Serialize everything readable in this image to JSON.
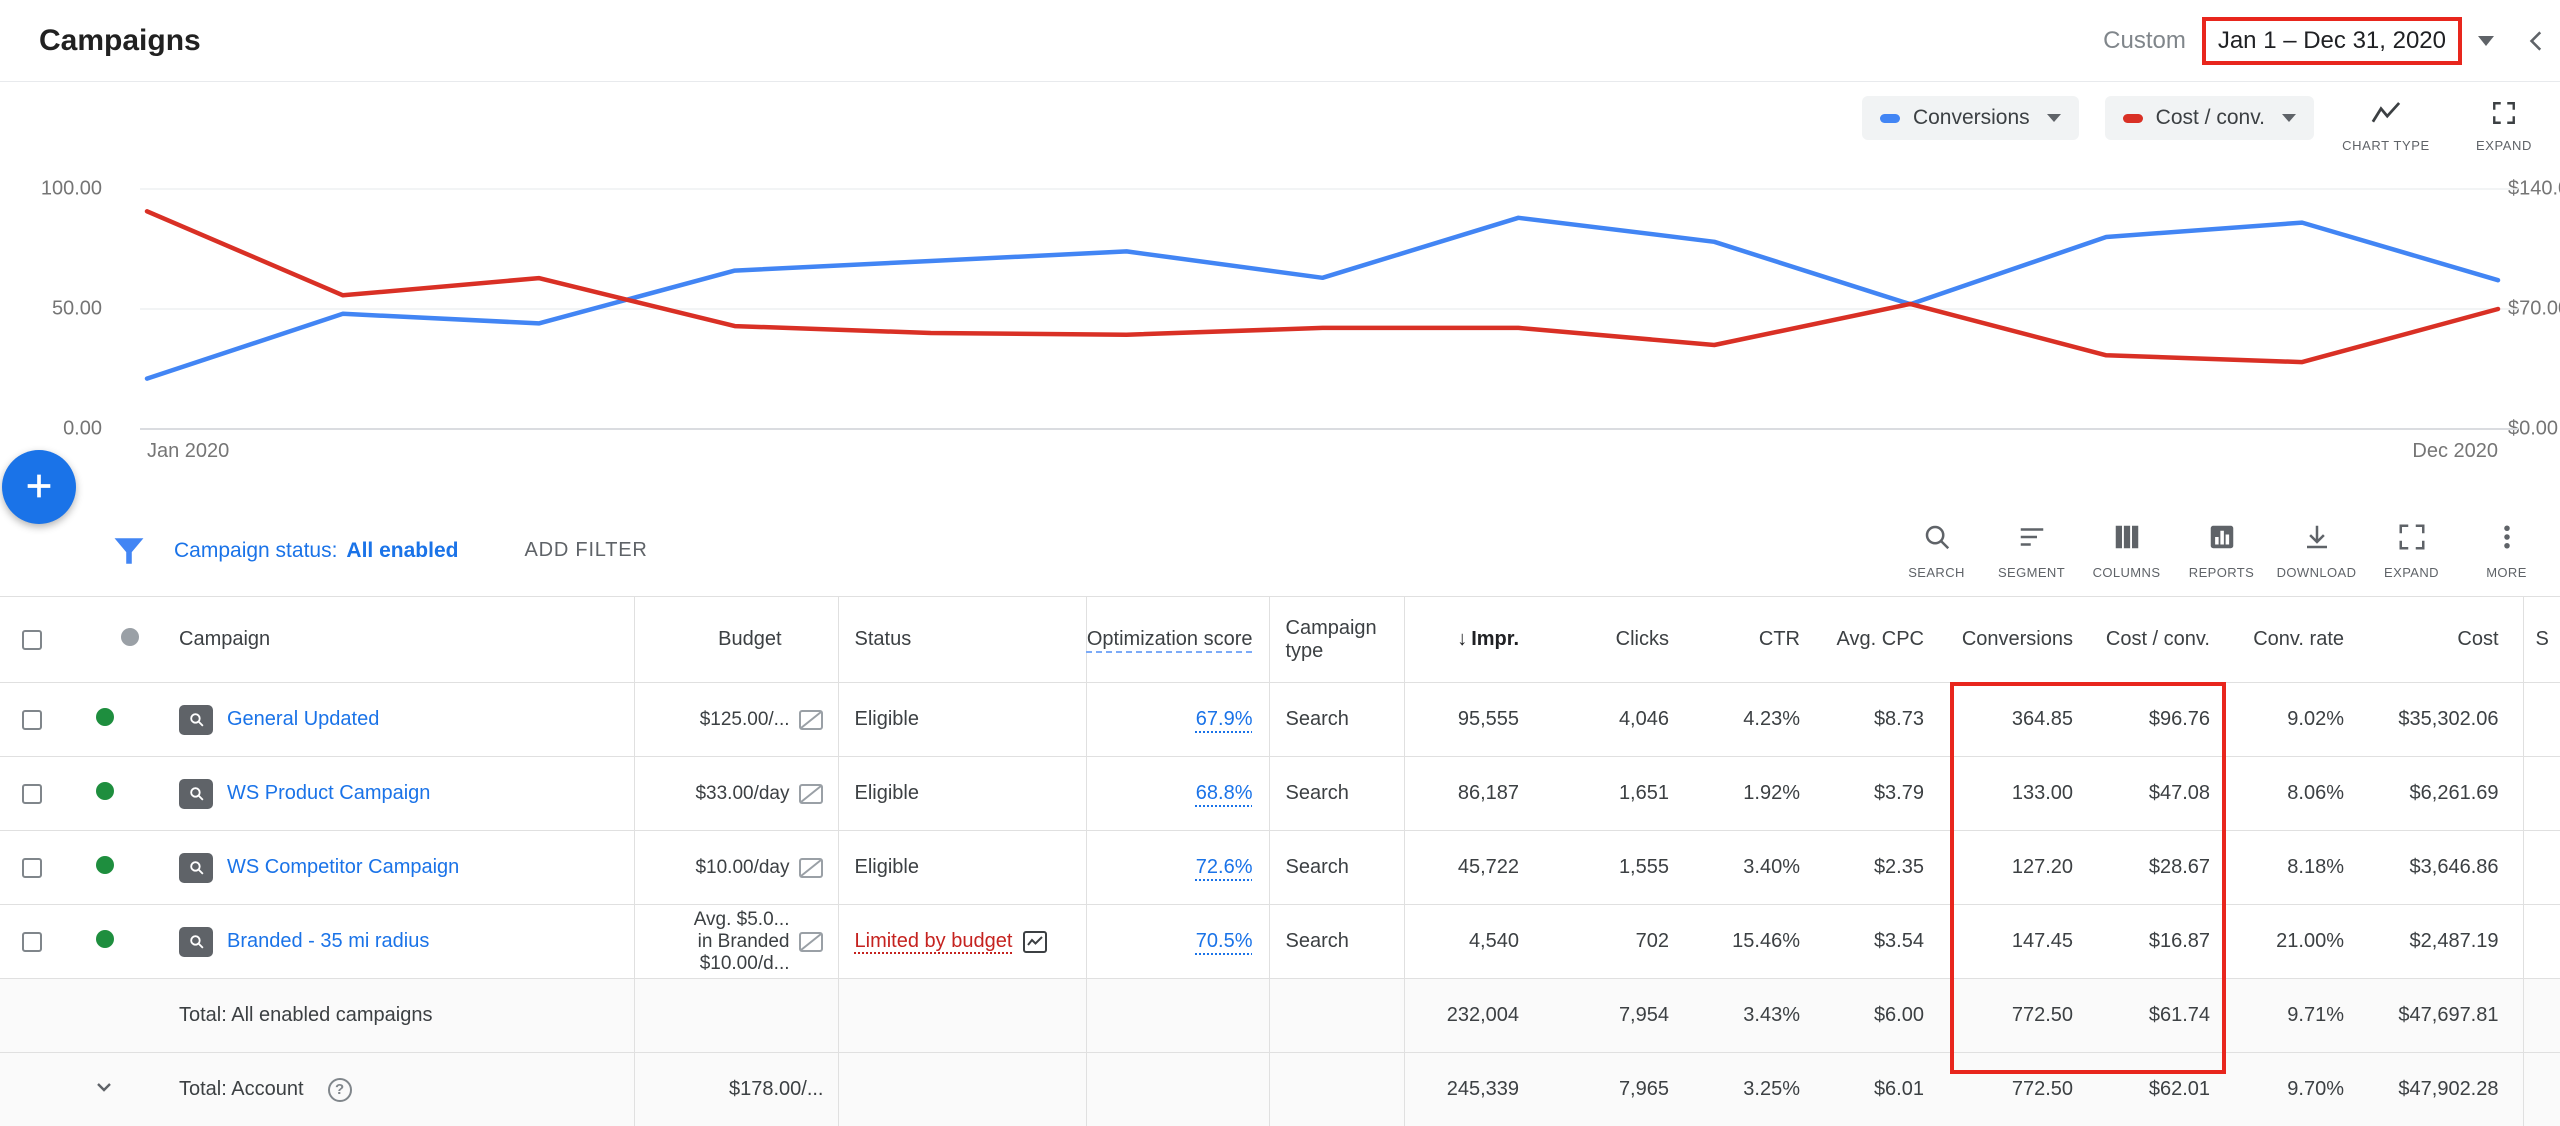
{
  "header": {
    "title": "Campaigns",
    "date_range_label": "Custom",
    "date_range_value": "Jan 1 – Dec 31, 2020"
  },
  "colors": {
    "primary_blue": "#1a73e8",
    "series_blue": "#4285f4",
    "series_red": "#d93025",
    "enabled_green": "#1e8e3e",
    "alert_red": "#c5221f",
    "annotation_red": "#e8261d"
  },
  "chart": {
    "legend": [
      {
        "label": "Conversions",
        "color": "#4285f4"
      },
      {
        "label": "Cost / conv.",
        "color": "#d93025"
      }
    ],
    "controls": [
      {
        "label": "CHART TYPE"
      },
      {
        "label": "EXPAND"
      }
    ],
    "left_axis": [
      "100.00",
      "50.00",
      "0.00"
    ],
    "right_axis": [
      "$140.00",
      "$70.00",
      "$0.00"
    ],
    "x_axis": [
      "Jan 2020",
      "Dec 2020"
    ]
  },
  "chart_data": {
    "type": "line",
    "x_labels": [
      "Jan 2020",
      "Dec 2020"
    ],
    "left_ylim": [
      0,
      100
    ],
    "right_ylim": [
      0,
      140
    ],
    "grid": true,
    "legend_position": "top-right",
    "series": [
      {
        "name": "Conversions",
        "axis": "left",
        "color": "#4285f4",
        "values": [
          21,
          48,
          44,
          66,
          70,
          74,
          63,
          88,
          78,
          52,
          80,
          86,
          62
        ]
      },
      {
        "name": "Cost / conv.",
        "axis": "right",
        "color": "#d93025",
        "values": [
          127,
          78,
          88,
          60,
          56,
          55,
          59,
          59,
          49,
          73,
          43,
          39,
          70
        ]
      }
    ]
  },
  "filter_bar": {
    "status_label": "Campaign status:",
    "status_value": "All enabled",
    "add_filter": "ADD FILTER",
    "toolbar": [
      {
        "name": "search",
        "label": "SEARCH"
      },
      {
        "name": "segment",
        "label": "SEGMENT"
      },
      {
        "name": "columns",
        "label": "COLUMNS"
      },
      {
        "name": "reports",
        "label": "REPORTS"
      },
      {
        "name": "download",
        "label": "DOWNLOAD"
      },
      {
        "name": "expand",
        "label": "EXPAND"
      },
      {
        "name": "more",
        "label": "MORE"
      }
    ]
  },
  "table": {
    "header": {
      "campaign": "Campaign",
      "budget": "Budget",
      "status": "Status",
      "opt_score": "Optimization score",
      "type": "Campaign type",
      "sort_icon": "↓",
      "impr": "Impr.",
      "clicks": "Clicks",
      "ctr": "CTR",
      "avg_cpc": "Avg. CPC",
      "conversions": "Conversions",
      "cost_conv": "Cost / conv.",
      "conv_rate": "Conv. rate",
      "cost": "Cost",
      "partial": "S"
    },
    "rows": [
      {
        "campaign": "General Updated",
        "budget_lines": [
          "$125.00/..."
        ],
        "status": "Eligible",
        "status_alert": false,
        "opt_score": "67.9%",
        "type": "Search",
        "impr": "95,555",
        "clicks": "4,046",
        "ctr": "4.23%",
        "avg_cpc": "$8.73",
        "conversions": "364.85",
        "cost_conv": "$96.76",
        "conv_rate": "9.02%",
        "cost": "$35,302.06"
      },
      {
        "campaign": "WS Product Campaign",
        "budget_lines": [
          "$33.00/day"
        ],
        "status": "Eligible",
        "status_alert": false,
        "opt_score": "68.8%",
        "type": "Search",
        "impr": "86,187",
        "clicks": "1,651",
        "ctr": "1.92%",
        "avg_cpc": "$3.79",
        "conversions": "133.00",
        "cost_conv": "$47.08",
        "conv_rate": "8.06%",
        "cost": "$6,261.69"
      },
      {
        "campaign": "WS Competitor Campaign",
        "budget_lines": [
          "$10.00/day"
        ],
        "status": "Eligible",
        "status_alert": false,
        "opt_score": "72.6%",
        "type": "Search",
        "impr": "45,722",
        "clicks": "1,555",
        "ctr": "3.40%",
        "avg_cpc": "$2.35",
        "conversions": "127.20",
        "cost_conv": "$28.67",
        "conv_rate": "8.18%",
        "cost": "$3,646.86"
      },
      {
        "campaign": "Branded - 35 mi radius",
        "budget_lines": [
          "Avg. $5.0...",
          "in Branded",
          "$10.00/d..."
        ],
        "status": "Limited by budget",
        "status_alert": true,
        "opt_score": "70.5%",
        "type": "Search",
        "impr": "4,540",
        "clicks": "702",
        "ctr": "15.46%",
        "avg_cpc": "$3.54",
        "conversions": "147.45",
        "cost_conv": "$16.87",
        "conv_rate": "21.00%",
        "cost": "$2,487.19"
      }
    ],
    "totals": [
      {
        "label": "Total: All enabled campaigns",
        "expandable": false,
        "help": false,
        "budget": "",
        "impr": "232,004",
        "clicks": "7,954",
        "ctr": "3.43%",
        "avg_cpc": "$6.00",
        "conversions": "772.50",
        "cost_conv": "$61.74",
        "conv_rate": "9.71%",
        "cost": "$47,697.81"
      },
      {
        "label": "Total: Account",
        "expandable": true,
        "help": true,
        "budget": "$178.00/...",
        "impr": "245,339",
        "clicks": "7,965",
        "ctr": "3.25%",
        "avg_cpc": "$6.01",
        "conversions": "772.50",
        "cost_conv": "$62.01",
        "conv_rate": "9.70%",
        "cost": "$47,902.28"
      }
    ]
  }
}
